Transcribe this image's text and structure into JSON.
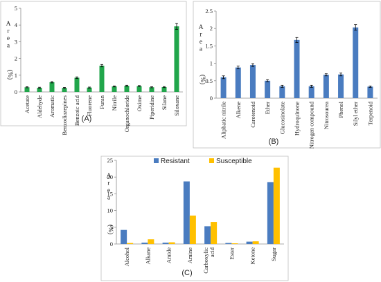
{
  "chart_data": [
    {
      "type": "bar",
      "panel": "(A)",
      "ylabel": "A r e a (%)",
      "ylim": [
        0,
        5
      ],
      "yticks": [
        0,
        1,
        2,
        3,
        4,
        5
      ],
      "color": "#21a64b",
      "error_bars": true,
      "categories": [
        "Acetate",
        "Aldehyde",
        "Aromatic",
        "Benzodiazepines",
        "Benzoic acid",
        "Fluorene",
        "Furan",
        "Nitrile",
        "Organochloride",
        "Oxime",
        "Piperidine",
        "Silane",
        "Siloxane"
      ],
      "values": [
        0.28,
        0.25,
        0.58,
        0.24,
        0.85,
        0.26,
        1.57,
        0.33,
        0.37,
        0.35,
        0.28,
        0.29,
        3.92
      ],
      "errors": [
        0.03,
        0.03,
        0.04,
        0.03,
        0.05,
        0.03,
        0.07,
        0.03,
        0.03,
        0.03,
        0.03,
        0.03,
        0.18
      ]
    },
    {
      "type": "bar",
      "panel": "(B)",
      "ylabel": "A r e a (%)",
      "ylim": [
        0,
        2.5
      ],
      "yticks": [
        0,
        0.5,
        1,
        1.5,
        2,
        2.5
      ],
      "ytick_labels": [
        "0",
        "0.5",
        "1",
        "1.5",
        "2",
        "2.5"
      ],
      "color": "#4a7cc0",
      "error_bars": true,
      "categories": [
        "Aliphatic nitrile",
        "Alkene",
        "Carotenoid",
        "Ether",
        "Glucosinolate",
        "Hydroquinone",
        "Nitrogen compound",
        "Nitrosourea",
        "Phenol",
        "Silyl ether",
        "Terpenoid"
      ],
      "values": [
        0.6,
        0.88,
        0.95,
        0.5,
        0.34,
        1.67,
        0.34,
        0.67,
        0.68,
        2.03,
        0.33
      ],
      "errors": [
        0.04,
        0.04,
        0.04,
        0.03,
        0.03,
        0.07,
        0.03,
        0.03,
        0.04,
        0.08,
        0.02
      ]
    },
    {
      "type": "bar",
      "panel": "(C)",
      "ylabel": "A r e a (%)",
      "ylim": [
        0,
        25
      ],
      "yticks": [
        0,
        5,
        10,
        15,
        20,
        25
      ],
      "legend": "top",
      "categories": [
        "Alcohol",
        "Alkane",
        "Amide",
        "Amine",
        "Carboxylic acid",
        "Ester",
        "Ketone",
        "Sugar"
      ],
      "series": [
        {
          "name": "Resistant",
          "color": "#4a7cc0",
          "values": [
            4.2,
            0.4,
            0.4,
            18.7,
            5.3,
            0.3,
            0.7,
            18.5
          ]
        },
        {
          "name": "Susceptible",
          "color": "#ffc000",
          "values": [
            0.3,
            1.4,
            0.5,
            8.5,
            6.6,
            0.2,
            0.8,
            22.8
          ]
        }
      ]
    }
  ]
}
